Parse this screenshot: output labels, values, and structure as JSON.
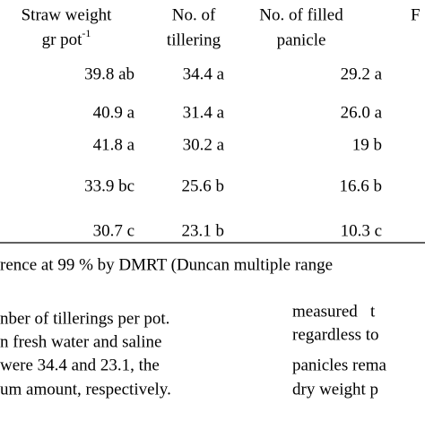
{
  "table": {
    "headers": [
      {
        "line1": "Straw weight",
        "line2": "gr pot",
        "line2_sup": "-1"
      },
      {
        "line1": "No. of",
        "line2": "tillering"
      },
      {
        "line1": "No. of filled",
        "line2": "panicle"
      },
      {
        "line1": "F"
      }
    ],
    "rows": [
      [
        "39.8 ab",
        "34.4 a",
        "29.2 a"
      ],
      [
        "40.9 a",
        "31.4 a",
        "26.0 a"
      ],
      [
        "41.8 a",
        "30.2 a",
        "19 b"
      ],
      [
        "33.9 bc",
        "25.6 b",
        "16.6 b"
      ],
      [
        "30.7 c",
        "23.1 b",
        "10.3 c"
      ]
    ],
    "footnote": "rence at 99 % by DMRT (Duncan multiple range"
  },
  "body": {
    "left_column": [
      "nber of tillerings per pot.",
      "n fresh water and saline",
      "were 34.4 and 23.1, the",
      "um amount, respectively."
    ],
    "right_column": [
      "measured   t",
      "regardless to",
      "panicles rema",
      "dry weight p"
    ]
  }
}
